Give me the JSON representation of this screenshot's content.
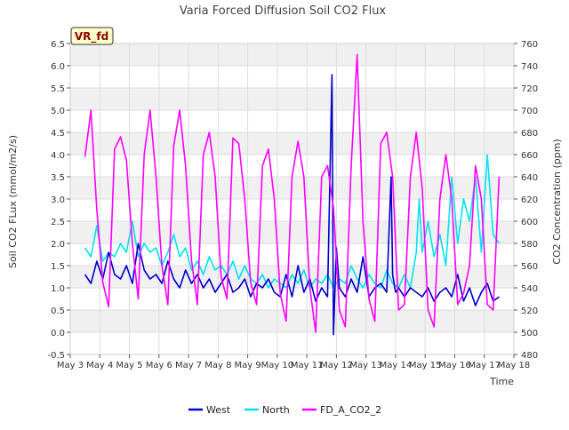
{
  "chart_data": {
    "type": "line",
    "title": "Varia Forced Diffusion Soil CO2 Flux",
    "badge": "VR_fd",
    "xlabel": "Time",
    "ylabel_left": "Soil CO2 FLux (mmol/m2/s)",
    "ylabel_right": "CO2 Concentration (ppm)",
    "ylim_left": [
      -0.5,
      6.5
    ],
    "ylim_right": [
      480,
      760
    ],
    "y_ticks_left": [
      "-0.5",
      "0.0",
      "0.5",
      "1.0",
      "1.5",
      "2.0",
      "2.5",
      "3.0",
      "3.5",
      "4.0",
      "4.5",
      "5.0",
      "5.5",
      "6.0",
      "6.5"
    ],
    "y_ticks_right": [
      "480",
      "500",
      "520",
      "540",
      "560",
      "580",
      "600",
      "620",
      "640",
      "660",
      "680",
      "700",
      "720",
      "740",
      "760"
    ],
    "x_ticks": [
      "May 3",
      "May 4",
      "May 5",
      "May 6",
      "May 7",
      "May 8",
      "May 9",
      "May 10",
      "May 11",
      "May 12",
      "May 13",
      "May 14",
      "May 15",
      "May 16",
      "May 17",
      "May 18"
    ],
    "xlim": [
      3,
      18
    ],
    "grid": true,
    "legend_position": "bottom",
    "series": [
      {
        "name": "West",
        "axis": "left",
        "color": "#0000cc",
        "x": [
          3.5,
          3.7,
          3.9,
          4.1,
          4.3,
          4.5,
          4.7,
          4.9,
          5.1,
          5.3,
          5.5,
          5.7,
          5.9,
          6.1,
          6.3,
          6.5,
          6.7,
          6.9,
          7.1,
          7.3,
          7.5,
          7.7,
          7.9,
          8.1,
          8.3,
          8.5,
          8.7,
          8.9,
          9.1,
          9.3,
          9.5,
          9.7,
          9.9,
          10.1,
          10.3,
          10.5,
          10.7,
          10.9,
          11.1,
          11.3,
          11.5,
          11.7,
          11.85,
          11.9,
          12.0,
          12.1,
          12.3,
          12.5,
          12.7,
          12.9,
          13.1,
          13.3,
          13.5,
          13.7,
          13.85,
          13.9,
          14.0,
          14.1,
          14.3,
          14.5,
          14.7,
          14.9,
          15.1,
          15.3,
          15.5,
          15.7,
          15.9,
          16.1,
          16.3,
          16.5,
          16.7,
          16.9,
          17.1,
          17.3,
          17.5
        ],
        "values": [
          1.3,
          1.1,
          1.6,
          1.2,
          1.8,
          1.3,
          1.2,
          1.5,
          1.1,
          2.0,
          1.4,
          1.2,
          1.3,
          1.1,
          1.6,
          1.2,
          1.0,
          1.4,
          1.1,
          1.3,
          1.0,
          1.2,
          0.9,
          1.1,
          1.3,
          0.9,
          1.0,
          1.2,
          0.8,
          1.1,
          1.0,
          1.2,
          0.9,
          0.8,
          1.3,
          0.8,
          1.5,
          0.9,
          1.2,
          0.7,
          1.0,
          0.8,
          5.8,
          -0.05,
          1.9,
          1.0,
          0.8,
          1.2,
          0.9,
          1.7,
          0.8,
          1.0,
          1.1,
          0.9,
          3.5,
          1.3,
          0.9,
          1.0,
          0.8,
          1.0,
          0.9,
          0.8,
          1.0,
          0.7,
          0.9,
          1.0,
          0.8,
          1.3,
          0.7,
          1.0,
          0.6,
          0.9,
          1.1,
          0.7,
          0.8
        ]
      },
      {
        "name": "North",
        "axis": "left",
        "color": "#00e5ee",
        "x": [
          3.5,
          3.7,
          3.9,
          4.1,
          4.3,
          4.5,
          4.7,
          4.9,
          5.1,
          5.3,
          5.5,
          5.7,
          5.9,
          6.1,
          6.3,
          6.5,
          6.7,
          6.9,
          7.1,
          7.3,
          7.5,
          7.7,
          7.9,
          8.1,
          8.3,
          8.5,
          8.7,
          8.9,
          9.1,
          9.3,
          9.5,
          9.7,
          9.9,
          10.1,
          10.3,
          10.5,
          10.7,
          10.9,
          11.1,
          11.3,
          11.5,
          11.7,
          11.9,
          12.1,
          12.3,
          12.5,
          12.7,
          12.9,
          13.1,
          13.3,
          13.5,
          13.7,
          13.9,
          14.1,
          14.3,
          14.5,
          14.7,
          14.8,
          14.9,
          15.1,
          15.3,
          15.5,
          15.7,
          15.9,
          16.1,
          16.3,
          16.5,
          16.7,
          16.9,
          17.1,
          17.3,
          17.5
        ],
        "values": [
          1.9,
          1.7,
          2.4,
          1.6,
          1.8,
          1.7,
          2.0,
          1.8,
          2.5,
          1.7,
          2.0,
          1.8,
          1.9,
          1.5,
          1.8,
          2.2,
          1.7,
          1.9,
          1.4,
          1.6,
          1.3,
          1.7,
          1.4,
          1.5,
          1.3,
          1.6,
          1.2,
          1.5,
          1.2,
          1.1,
          1.3,
          1.0,
          1.2,
          1.1,
          1.0,
          1.3,
          1.1,
          1.4,
          1.0,
          1.2,
          1.1,
          1.3,
          1.0,
          1.2,
          1.1,
          1.5,
          1.2,
          1.0,
          1.3,
          1.1,
          1.0,
          1.4,
          1.1,
          1.0,
          1.3,
          1.0,
          1.8,
          3.0,
          1.8,
          2.5,
          1.7,
          2.2,
          1.5,
          3.5,
          2.0,
          3.0,
          2.5,
          3.5,
          1.8,
          4.0,
          2.2,
          2.0
        ]
      },
      {
        "name": "FD_A_CO2_2",
        "axis": "right",
        "color": "#ff00ff",
        "x": [
          3.5,
          3.7,
          3.9,
          4.1,
          4.3,
          4.5,
          4.7,
          4.9,
          5.1,
          5.3,
          5.5,
          5.7,
          5.9,
          6.1,
          6.3,
          6.5,
          6.7,
          6.9,
          7.1,
          7.3,
          7.5,
          7.7,
          7.9,
          8.1,
          8.3,
          8.5,
          8.7,
          8.9,
          9.1,
          9.3,
          9.5,
          9.7,
          9.9,
          10.1,
          10.3,
          10.5,
          10.7,
          10.9,
          11.1,
          11.3,
          11.5,
          11.7,
          11.9,
          12.1,
          12.3,
          12.5,
          12.7,
          12.9,
          13.1,
          13.3,
          13.5,
          13.7,
          13.9,
          14.1,
          14.3,
          14.5,
          14.7,
          14.9,
          15.1,
          15.3,
          15.5,
          15.7,
          15.9,
          16.1,
          16.3,
          16.5,
          16.7,
          16.9,
          17.1,
          17.3,
          17.5
        ],
        "values": [
          658,
          700,
          610,
          545,
          523,
          665,
          676,
          655,
          580,
          530,
          660,
          700,
          640,
          560,
          525,
          668,
          700,
          650,
          565,
          525,
          660,
          680,
          640,
          550,
          530,
          675,
          670,
          620,
          545,
          525,
          650,
          665,
          620,
          535,
          510,
          640,
          672,
          640,
          540,
          500,
          640,
          650,
          612,
          520,
          505,
          650,
          750,
          600,
          530,
          510,
          670,
          680,
          640,
          520,
          525,
          640,
          680,
          630,
          520,
          505,
          620,
          660,
          620,
          525,
          535,
          560,
          650,
          620,
          525,
          520,
          640
        ]
      }
    ]
  }
}
